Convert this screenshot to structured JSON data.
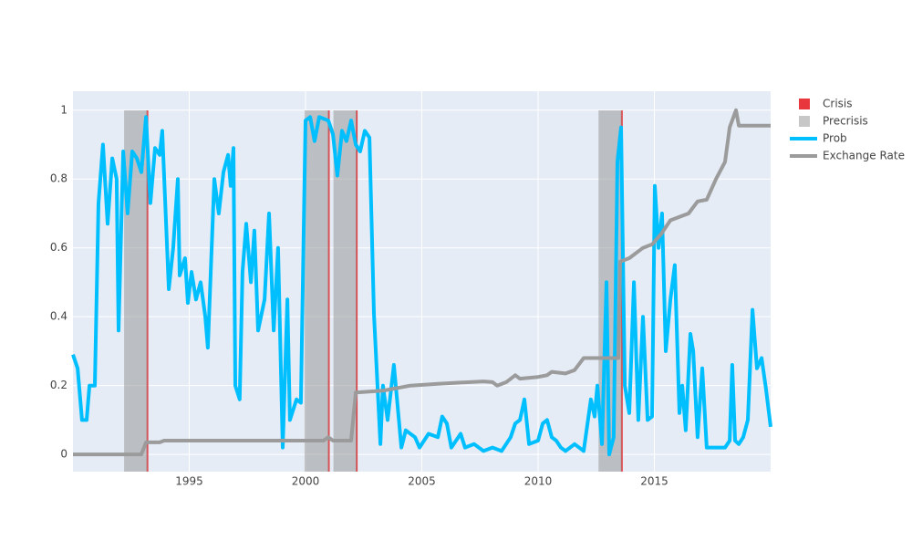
{
  "chart_data": {
    "type": "line",
    "xlim": [
      1990,
      2020
    ],
    "ylim": [
      -0.05,
      1.055
    ],
    "xticks": [
      1995,
      2000,
      2005,
      2010,
      2015
    ],
    "yticks": [
      0,
      0.2,
      0.4,
      0.6,
      0.8,
      1
    ],
    "grid": true,
    "series": [
      {
        "name": "Crisis",
        "color": "#e8383d",
        "x": [
          1993.2,
          2001.0,
          2002.2,
          2013.6
        ]
      },
      {
        "name": "Precrisis",
        "color": "#999999",
        "x_start": [
          1992.2,
          1999.96,
          2001.2,
          2012.6
        ],
        "x_end": [
          1993.2,
          2001.0,
          2002.2,
          2013.6
        ]
      },
      {
        "name": "Prob",
        "color": "#00bfff",
        "x": [
          1990.0,
          1990.2,
          1990.39,
          1990.59,
          1990.71,
          1990.94,
          1991.1,
          1991.29,
          1991.49,
          1991.69,
          1991.88,
          1991.96,
          1992.16,
          1992.35,
          1992.55,
          1992.75,
          1992.94,
          1993.14,
          1993.33,
          1993.53,
          1993.73,
          1993.84,
          1994.12,
          1994.31,
          1994.51,
          1994.59,
          1994.82,
          1994.94,
          1995.1,
          1995.29,
          1995.49,
          1995.69,
          1995.8,
          1996.08,
          1996.27,
          1996.47,
          1996.67,
          1996.78,
          1996.9,
          1996.98,
          1997.17,
          1997.29,
          1997.45,
          1997.65,
          1997.8,
          1997.96,
          1998.24,
          1998.43,
          1998.63,
          1998.82,
          1999.02,
          1999.22,
          1999.33,
          1999.61,
          1999.8,
          2000.0,
          2000.2,
          2000.39,
          2000.59,
          2000.98,
          2001.18,
          2001.37,
          2001.57,
          2001.76,
          2001.96,
          2002.16,
          2002.35,
          2002.55,
          2002.75,
          2002.94,
          2003.22,
          2003.33,
          2003.53,
          2003.8,
          2004.12,
          2004.31,
          2004.71,
          2004.9,
          2005.29,
          2005.69,
          2005.88,
          2006.08,
          2006.27,
          2006.67,
          2006.86,
          2007.25,
          2007.65,
          2008.04,
          2008.43,
          2008.82,
          2009.02,
          2009.22,
          2009.41,
          2009.61,
          2010.0,
          2010.2,
          2010.39,
          2010.59,
          2010.78,
          2010.98,
          2011.18,
          2011.57,
          2011.96,
          2012.27,
          2012.43,
          2012.55,
          2012.75,
          2012.94,
          2013.06,
          2013.25,
          2013.41,
          2013.57,
          2013.73,
          2013.92,
          2014.12,
          2014.31,
          2014.51,
          2014.71,
          2014.9,
          2015.02,
          2015.18,
          2015.33,
          2015.49,
          2015.69,
          2015.88,
          2016.08,
          2016.2,
          2016.35,
          2016.55,
          2016.67,
          2016.86,
          2017.06,
          2017.25,
          2017.65,
          2018.04,
          2018.24,
          2018.35,
          2018.47,
          2018.63,
          2018.82,
          2019.02,
          2019.22,
          2019.41,
          2019.61,
          2019.8,
          2020.0
        ],
        "values": [
          0.29,
          0.25,
          0.1,
          0.1,
          0.2,
          0.2,
          0.73,
          0.9,
          0.67,
          0.86,
          0.8,
          0.36,
          0.88,
          0.7,
          0.88,
          0.86,
          0.82,
          0.98,
          0.73,
          0.89,
          0.87,
          0.94,
          0.48,
          0.6,
          0.8,
          0.52,
          0.57,
          0.44,
          0.53,
          0.45,
          0.5,
          0.4,
          0.31,
          0.8,
          0.7,
          0.82,
          0.87,
          0.78,
          0.89,
          0.2,
          0.16,
          0.53,
          0.67,
          0.5,
          0.65,
          0.36,
          0.45,
          0.7,
          0.36,
          0.6,
          0.02,
          0.45,
          0.1,
          0.16,
          0.15,
          0.97,
          0.98,
          0.91,
          0.98,
          0.97,
          0.93,
          0.81,
          0.94,
          0.91,
          0.97,
          0.9,
          0.88,
          0.94,
          0.92,
          0.41,
          0.03,
          0.2,
          0.1,
          0.26,
          0.02,
          0.07,
          0.05,
          0.02,
          0.06,
          0.05,
          0.11,
          0.09,
          0.02,
          0.06,
          0.02,
          0.03,
          0.01,
          0.02,
          0.01,
          0.05,
          0.09,
          0.1,
          0.16,
          0.03,
          0.04,
          0.09,
          0.1,
          0.05,
          0.04,
          0.02,
          0.01,
          0.03,
          0.01,
          0.16,
          0.11,
          0.2,
          0.03,
          0.5,
          0.0,
          0.05,
          0.85,
          0.95,
          0.2,
          0.12,
          0.5,
          0.1,
          0.4,
          0.1,
          0.11,
          0.78,
          0.6,
          0.7,
          0.3,
          0.45,
          0.55,
          0.12,
          0.2,
          0.07,
          0.35,
          0.3,
          0.05,
          0.25,
          0.02,
          0.02,
          0.02,
          0.04,
          0.26,
          0.04,
          0.03,
          0.05,
          0.1,
          0.42,
          0.25,
          0.28,
          0.19,
          0.08
        ]
      },
      {
        "name": "Exchange Rate",
        "color": "#9b9b9b",
        "x": [
          1990.0,
          1992.94,
          1993.14,
          1993.73,
          1993.92,
          1998.63,
          2000.78,
          2000.98,
          2001.18,
          2001.96,
          2002.16,
          2003.33,
          2003.73,
          2004.51,
          2005.69,
          2006.47,
          2007.65,
          2008.04,
          2008.24,
          2008.63,
          2009.02,
          2009.22,
          2010.0,
          2010.39,
          2010.59,
          2011.18,
          2011.57,
          2011.96,
          2013.45,
          2013.53,
          2013.92,
          2014.51,
          2014.9,
          2015.29,
          2015.69,
          2016.08,
          2016.47,
          2016.86,
          2017.25,
          2017.65,
          2018.04,
          2018.24,
          2018.51,
          2018.63,
          2020.0
        ],
        "values": [
          0,
          0,
          0.035,
          0.035,
          0.04,
          0.04,
          0.04,
          0.05,
          0.04,
          0.04,
          0.18,
          0.185,
          0.19,
          0.2,
          0.205,
          0.208,
          0.212,
          0.21,
          0.2,
          0.21,
          0.23,
          0.22,
          0.225,
          0.23,
          0.24,
          0.235,
          0.245,
          0.28,
          0.28,
          0.56,
          0.57,
          0.6,
          0.61,
          0.64,
          0.68,
          0.69,
          0.7,
          0.735,
          0.74,
          0.8,
          0.85,
          0.95,
          1.0,
          0.955,
          0.955
        ]
      }
    ]
  }
}
